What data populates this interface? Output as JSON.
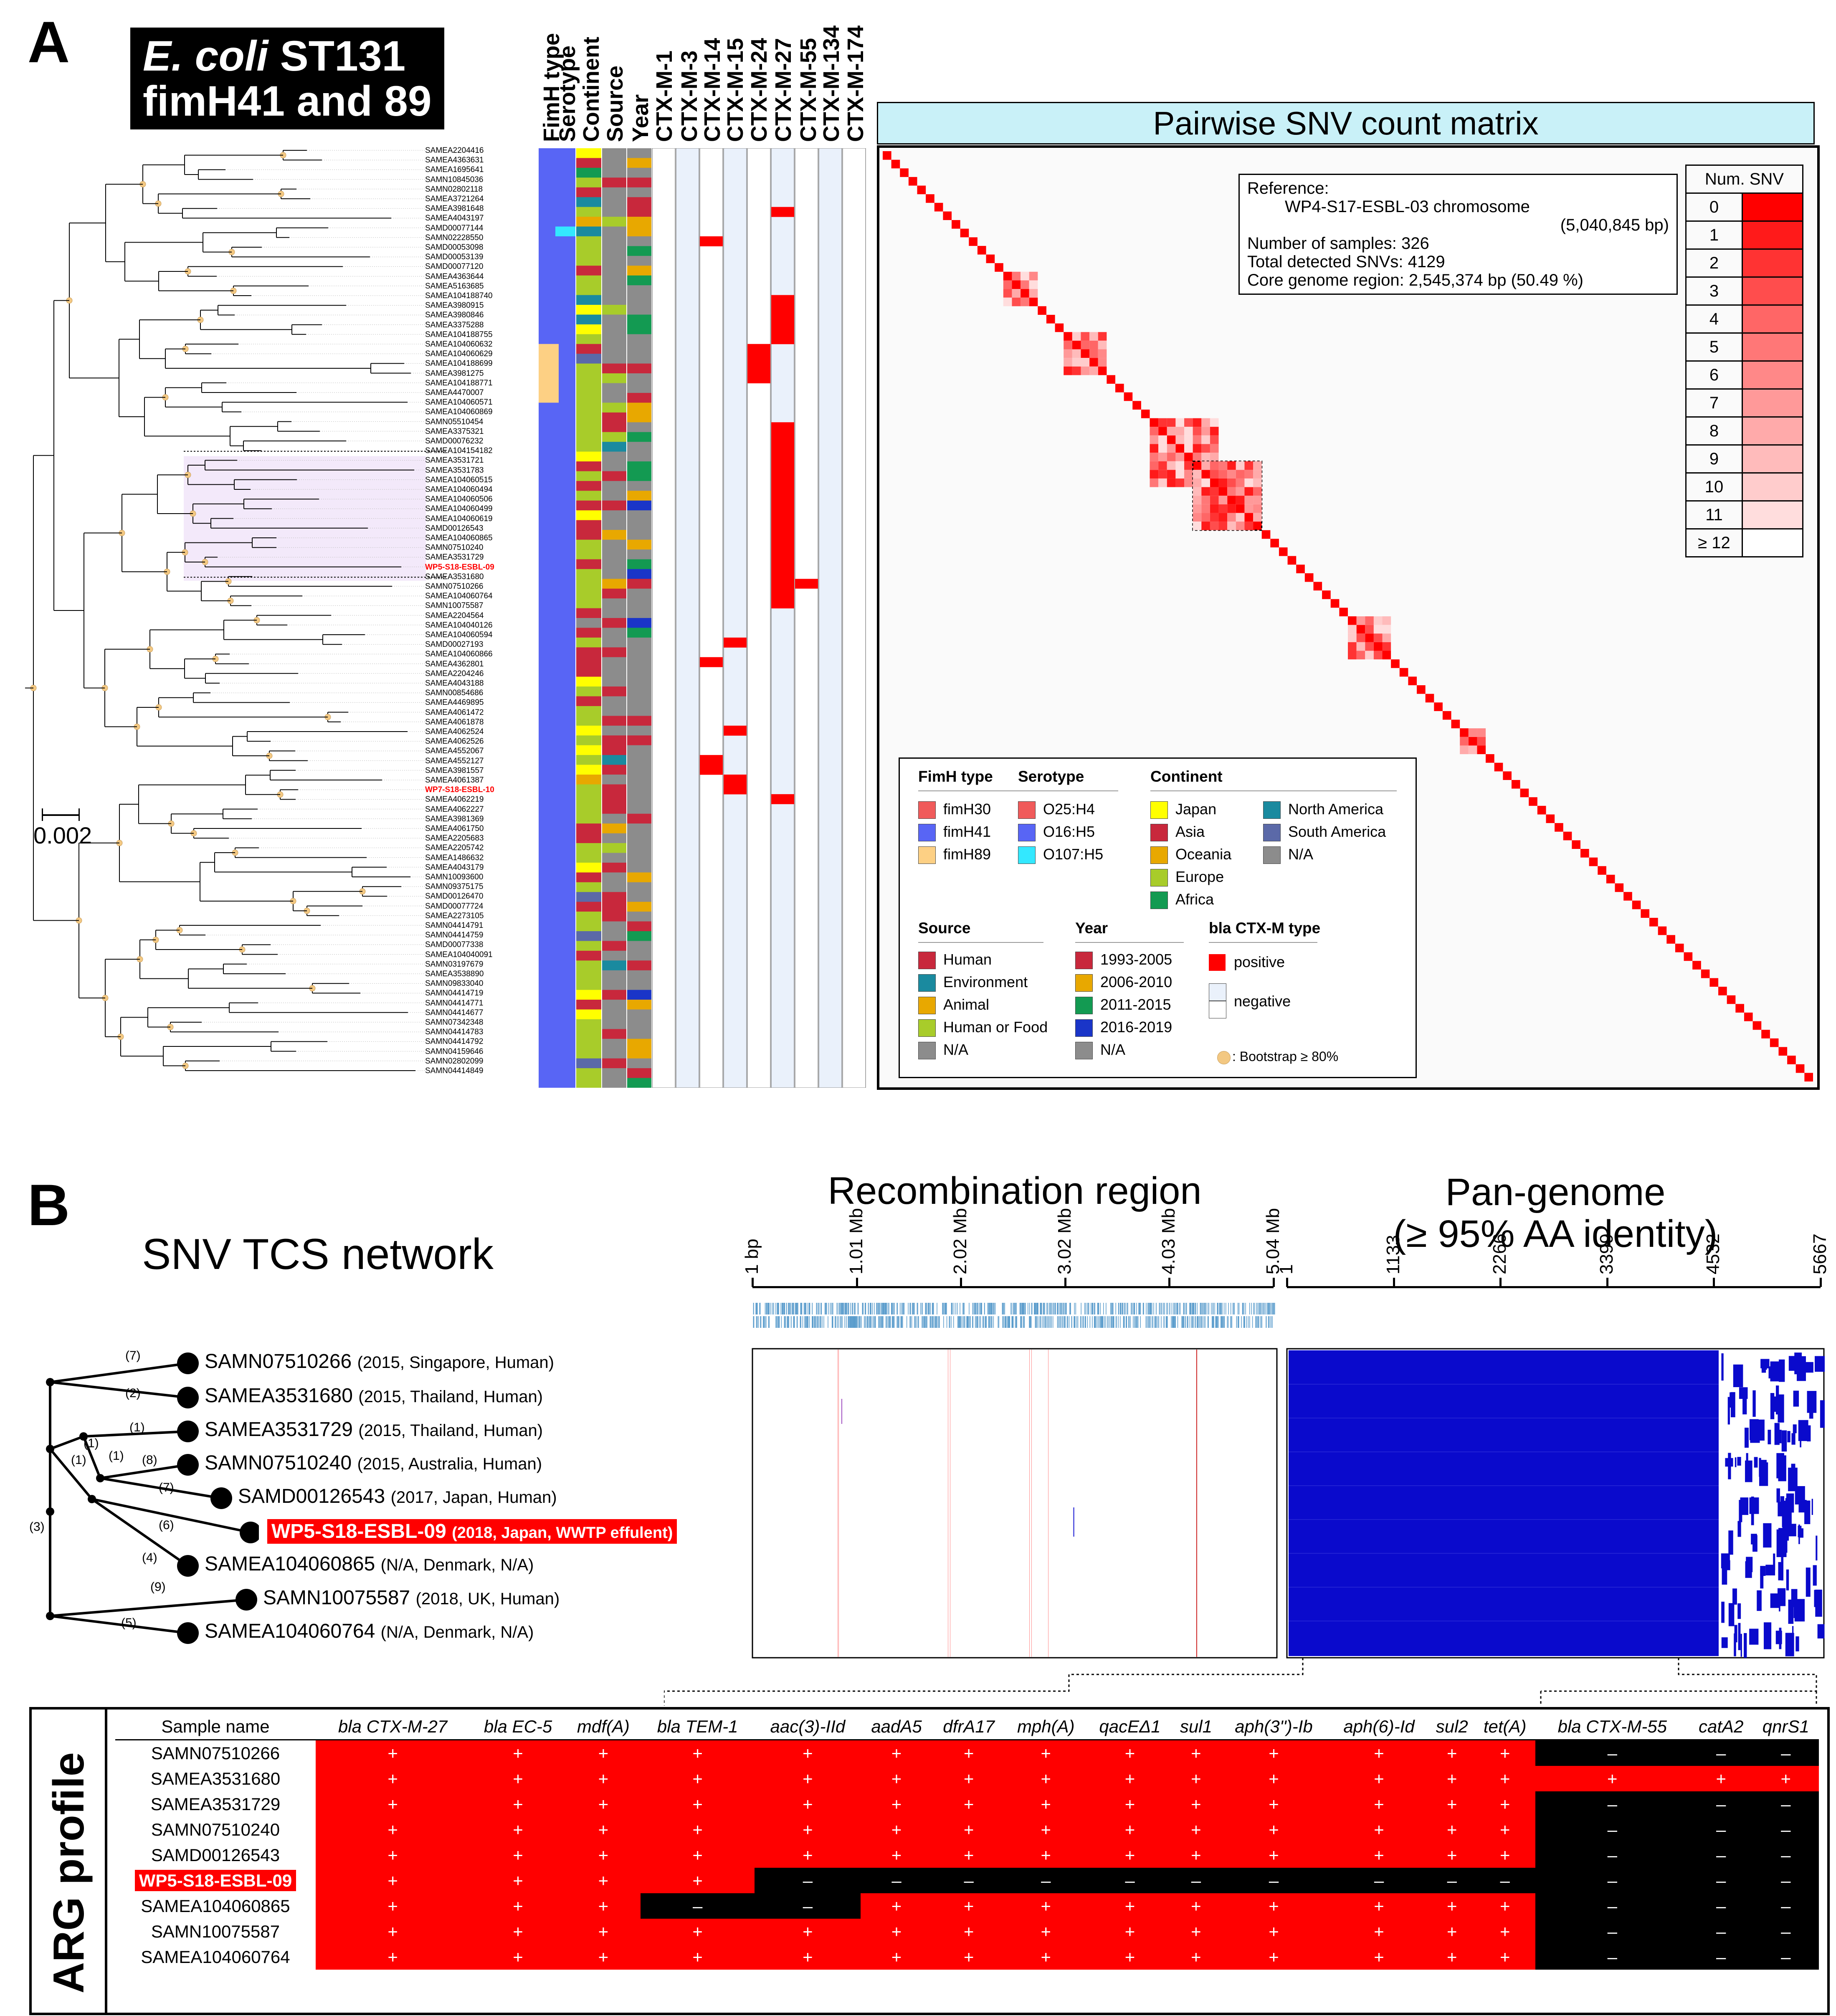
{
  "panel_a": {
    "letter": "A",
    "title_italic": "E. coli",
    "title_rest": " ST131",
    "title_line2": "fimH41 and 89",
    "column_headers": [
      "FimH type",
      "Serotype",
      "Continent",
      "Source",
      "Year",
      "CTX-M-1",
      "CTX-M-3",
      "CTX-M-14",
      "CTX-M-15",
      "CTX-M-24",
      "CTX-M-27",
      "CTX-M-55",
      "CTX-M-134",
      "CTX-M-174"
    ],
    "scale_bar": "0.002",
    "tips": [
      "SAMEA2204416",
      "SAMEA4363631",
      "SAMEA1695641",
      "SAMN10845036",
      "SAMN02802118",
      "SAMEA3721264",
      "SAMEA3981648",
      "SAMEA4043197",
      "SAMD00077144",
      "SAMN02228550",
      "SAMD00053098",
      "SAMD00053139",
      "SAMD00077120",
      "SAMEA4363644",
      "SAMEA5163685",
      "SAMEA104188740",
      "SAMEA3980915",
      "SAMEA3980846",
      "SAMEA3375288",
      "SAMEA104188755",
      "SAMEA104060632",
      "SAMEA104060629",
      "SAMEA104188699",
      "SAMEA3981275",
      "SAMEA104188771",
      "SAMEA4470007",
      "SAMEA104060571",
      "SAMEA104060869",
      "SAMN05510454",
      "SAMEA3375321",
      "SAMD00076232",
      "SAMEA104154182",
      "SAMEA3531721",
      "SAMEA3531783",
      "SAMEA104060515",
      "SAMEA104060494",
      "SAMEA104060506",
      "SAMEA104060499",
      "SAMEA104060619",
      "SAMD00126543",
      "SAMEA104060865",
      "SAMN07510240",
      "SAMEA3531729",
      "WP5-S18-ESBL-09",
      "SAMEA3531680",
      "SAMN07510266",
      "SAMEA104060764",
      "SAMN10075587",
      "SAMEA2204564",
      "SAMEA104040126",
      "SAMEA104060594",
      "SAMD00027193",
      "SAMEA104060866",
      "SAMEA4362801",
      "SAMEA2204246",
      "SAMEA4043188",
      "SAMN00854686",
      "SAMEA4469895",
      "SAMEA4061472",
      "SAMEA4061878",
      "SAMEA4062524",
      "SAMEA4062526",
      "SAMEA4552067",
      "SAMEA4552127",
      "SAMEA3981557",
      "SAMEA4061387",
      "WP7-S18-ESBL-10",
      "SAMEA4062219",
      "SAMEA4062227",
      "SAMEA3981369",
      "SAMEA4061750",
      "SAMEA2205683",
      "SAMEA2205742",
      "SAMEA1486632",
      "SAMEA4043179",
      "SAMN10093600",
      "SAMN09375175",
      "SAMD00126470",
      "SAMD00077724",
      "SAMEA2273105",
      "SAMN04414791",
      "SAMN04414759",
      "SAMD00077338",
      "SAMEA104040091",
      "SAMN03197679",
      "SAMEA3538890",
      "SAMN09833040",
      "SAMN04414719",
      "SAMN04414771",
      "SAMN04414677",
      "SAMN07342348",
      "SAMN04414783",
      "SAMN04414792",
      "SAMN04159646",
      "SAMN02802099",
      "SAMN04414849"
    ],
    "highlight_tips": [
      "WP5-S18-ESBL-09",
      "WP7-S18-ESBL-10"
    ]
  },
  "matrix": {
    "title": "Pairwise SNV count matrix",
    "ref_label": "Reference:",
    "ref_name": "WP4-S17-ESBL-03 chromosome",
    "ref_size": "(5,040,845 bp)",
    "n_samples": "Number of samples: 326",
    "n_snvs": "Total detected SNVs: 4129",
    "core": "Core genome region: 2,545,374 bp (50.49 %)",
    "legend_title": "Num. SNV",
    "legend_levels": [
      "0",
      "1",
      "2",
      "3",
      "4",
      "5",
      "6",
      "7",
      "8",
      "9",
      "10",
      "11",
      "≥ 12"
    ],
    "legend_colors": [
      "#ff0000",
      "#ff1a1a",
      "#ff3333",
      "#ff4d4d",
      "#ff6666",
      "#ff7777",
      "#ff8888",
      "#ff9999",
      "#ffaaaa",
      "#ffbbbb",
      "#ffcccc",
      "#ffdddd",
      "#ffffff"
    ]
  },
  "legend": {
    "fimh_title": "FimH type",
    "fimh": [
      {
        "label": "fimH30",
        "color": "#f05a5a"
      },
      {
        "label": "fimH41",
        "color": "#5865f5"
      },
      {
        "label": "fimH89",
        "color": "#fdd084"
      }
    ],
    "sero_title": "Serotype",
    "sero": [
      {
        "label": "O25:H4",
        "color": "#f05a5a"
      },
      {
        "label": "O16:H5",
        "color": "#5865f5"
      },
      {
        "label": "O107:H5",
        "color": "#33e8ff"
      }
    ],
    "cont_title": "Continent",
    "cont": [
      {
        "label": "Japan",
        "color": "#ffff00"
      },
      {
        "label": "Asia",
        "color": "#c8283c"
      },
      {
        "label": "Oceania",
        "color": "#e8a800"
      },
      {
        "label": "Europe",
        "color": "#a8cc2a"
      },
      {
        "label": "Africa",
        "color": "#139a52"
      }
    ],
    "cont2": [
      {
        "label": "North America",
        "color": "#1a8a9f"
      },
      {
        "label": "South America",
        "color": "#5b69a8"
      },
      {
        "label": "N/A",
        "color": "#8c8c8c"
      }
    ],
    "source_title": "Source",
    "source": [
      {
        "label": "Human",
        "color": "#c8283c"
      },
      {
        "label": "Environment",
        "color": "#1a8a9f"
      },
      {
        "label": "Animal",
        "color": "#e8a800"
      },
      {
        "label": "Human or Food",
        "color": "#a8cc2a"
      },
      {
        "label": "N/A",
        "color": "#8c8c8c"
      }
    ],
    "year_title": "Year",
    "year": [
      {
        "label": "1993-2005",
        "color": "#c8283c"
      },
      {
        "label": "2006-2010",
        "color": "#e8a800"
      },
      {
        "label": "2011-2015",
        "color": "#139a52"
      },
      {
        "label": "2016-2019",
        "color": "#1a35c8"
      },
      {
        "label": "N/A",
        "color": "#8c8c8c"
      }
    ],
    "ctx_title": "bla CTX-M type",
    "ctx_pos": "positive",
    "ctx_neg": "negative",
    "bootstrap": ": Bootstrap ≥ 80%"
  },
  "panel_b": {
    "letter": "B",
    "network_title": "SNV TCS network",
    "recomb_title": "Recombination region",
    "recomb_ticks": [
      "1 bp",
      "1.01 Mb",
      "2.02 Mb",
      "3.02 Mb",
      "4.03 Mb",
      "5.04 Mb"
    ],
    "pan_title_1": "Pan-genome",
    "pan_title_2": "(≥ 95% AA identity)",
    "pan_ticks": [
      "1",
      "1133",
      "2266",
      "3399",
      "4532",
      "5667"
    ],
    "network_nodes": [
      {
        "name": "SAMN07510266",
        "info": "(2015, Singapore, Human)"
      },
      {
        "name": "SAMEA3531680",
        "info": "(2015, Thailand, Human)"
      },
      {
        "name": "SAMEA3531729",
        "info": "(2015, Thailand, Human)"
      },
      {
        "name": "SAMN07510240",
        "info": "(2015, Australia, Human)"
      },
      {
        "name": "SAMD00126543",
        "info": "(2017, Japan, Human)"
      },
      {
        "name": "WP5-S18-ESBL-09",
        "info": "(2018, Japan, WWTP effulent)"
      },
      {
        "name": "SAMEA104060865",
        "info": "(N/A, Denmark, N/A)"
      },
      {
        "name": "SAMN10075587",
        "info": "(2018, UK, Human)"
      },
      {
        "name": "SAMEA104060764",
        "info": "(N/A, Denmark, N/A)"
      }
    ],
    "branch_labels": [
      "(7)",
      "(2)",
      "(1)",
      "(1)",
      "(1)",
      "(8)",
      "(7)",
      "(1)",
      "(6)",
      "(4)",
      "(3)",
      "(9)",
      "(5)"
    ]
  },
  "arg": {
    "side_title": "ARG profile",
    "name_header": "Sample name",
    "genes": [
      "bla CTX-M-27",
      "bla EC-5",
      "mdf(A)",
      "bla TEM-1",
      "aac(3)-IId",
      "aadA5",
      "dfrA17",
      "mph(A)",
      "qacEΔ1",
      "sul1",
      "aph(3'')-Ib",
      "aph(6)-Id",
      "sul2",
      "tet(A)",
      "bla CTX-M-55",
      "catA2",
      "qnrS1"
    ],
    "rows": [
      {
        "name": "SAMN07510266",
        "values": [
          "+",
          "+",
          "+",
          "+",
          "+",
          "+",
          "+",
          "+",
          "+",
          "+",
          "+",
          "+",
          "+",
          "+",
          "–",
          "–",
          "–"
        ]
      },
      {
        "name": "SAMEA3531680",
        "values": [
          "+",
          "+",
          "+",
          "+",
          "+",
          "+",
          "+",
          "+",
          "+",
          "+",
          "+",
          "+",
          "+",
          "+",
          "+",
          "+",
          "+"
        ]
      },
      {
        "name": "SAMEA3531729",
        "values": [
          "+",
          "+",
          "+",
          "+",
          "+",
          "+",
          "+",
          "+",
          "+",
          "+",
          "+",
          "+",
          "+",
          "+",
          "–",
          "–",
          "–"
        ]
      },
      {
        "name": "SAMN07510240",
        "values": [
          "+",
          "+",
          "+",
          "+",
          "+",
          "+",
          "+",
          "+",
          "+",
          "+",
          "+",
          "+",
          "+",
          "+",
          "–",
          "–",
          "–"
        ]
      },
      {
        "name": "SAMD00126543",
        "values": [
          "+",
          "+",
          "+",
          "+",
          "+",
          "+",
          "+",
          "+",
          "+",
          "+",
          "+",
          "+",
          "+",
          "+",
          "–",
          "–",
          "–"
        ]
      },
      {
        "name": "WP5-S18-ESBL-09",
        "values": [
          "+",
          "+",
          "+",
          "+",
          "–",
          "–",
          "–",
          "–",
          "–",
          "–",
          "–",
          "–",
          "–",
          "–",
          "–",
          "–",
          "–"
        ]
      },
      {
        "name": "SAMEA104060865",
        "values": [
          "+",
          "+",
          "+",
          "–",
          "–",
          "+",
          "+",
          "+",
          "+",
          "+",
          "+",
          "+",
          "+",
          "+",
          "–",
          "–",
          "–"
        ]
      },
      {
        "name": "SAMN10075587",
        "values": [
          "+",
          "+",
          "+",
          "+",
          "+",
          "+",
          "+",
          "+",
          "+",
          "+",
          "+",
          "+",
          "+",
          "+",
          "–",
          "–",
          "–"
        ]
      },
      {
        "name": "SAMEA104060764",
        "values": [
          "+",
          "+",
          "+",
          "+",
          "+",
          "+",
          "+",
          "+",
          "+",
          "+",
          "+",
          "+",
          "+",
          "+",
          "–",
          "–",
          "–"
        ]
      }
    ]
  }
}
